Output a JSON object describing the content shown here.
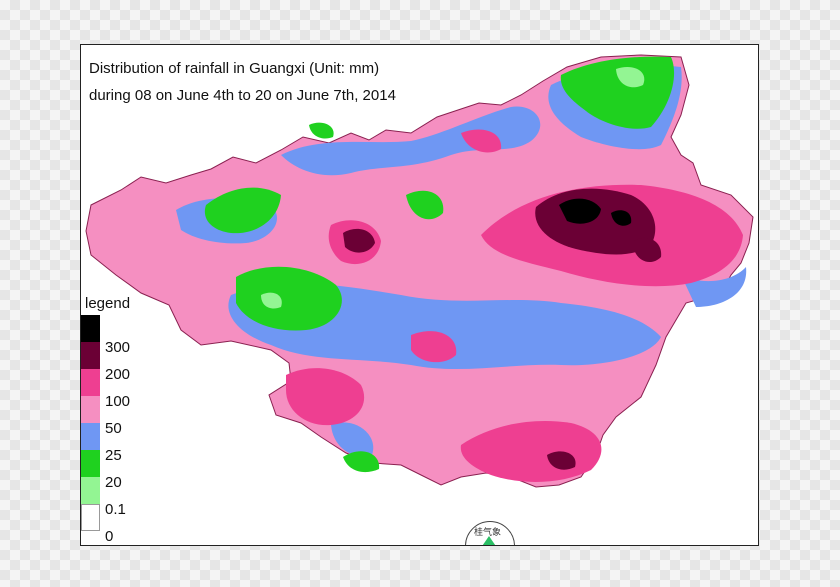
{
  "title": {
    "line1": "Distribution of rainfall in Guangxi (Unit: mm)",
    "line2": "during 08 on June 4th to 20 on June 7th, 2014"
  },
  "legend": {
    "title": "legend",
    "items": [
      {
        "label": "300",
        "color": "#000000"
      },
      {
        "label": "200",
        "color": "#6b0035"
      },
      {
        "label": "100",
        "color": "#ee3f91"
      },
      {
        "label": "50",
        "color": "#f58fc1"
      },
      {
        "label": "25",
        "color": "#6f97f3"
      },
      {
        "label": "20",
        "color": "#1fd11f"
      },
      {
        "label": "0.1",
        "color": "#93f593"
      },
      {
        "label": "0",
        "color": "#ffffff"
      }
    ]
  },
  "compass": {
    "label": "桂气象"
  },
  "colors": {
    "background": "#f58fc1",
    "heavy": "#ee3f91",
    "very_heavy": "#6b0035",
    "light": "#6f97f3",
    "green": "#1fd11f",
    "light_green": "#93f593"
  }
}
